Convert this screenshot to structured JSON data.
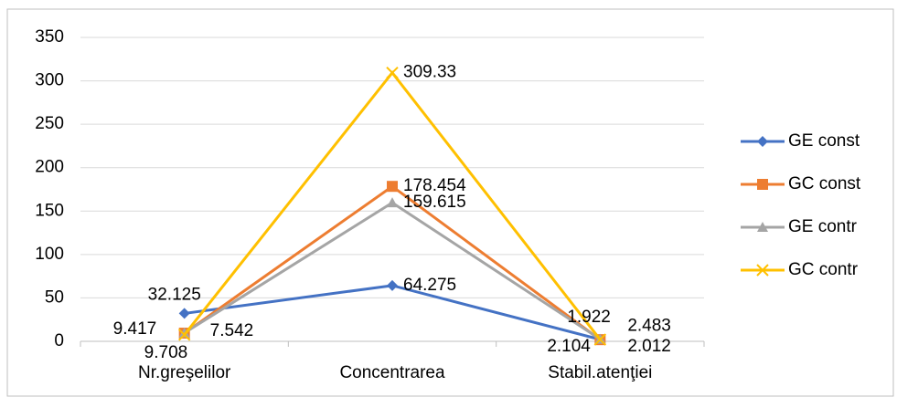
{
  "chart_data": {
    "type": "line",
    "categories": [
      "Nr.greşelilor",
      "Concentrarea",
      "Stabil.atenţiei"
    ],
    "series": [
      {
        "name": "GE const",
        "color": "#4472c4",
        "marker": "diamond",
        "values": [
          32.125,
          64.275,
          2.104
        ]
      },
      {
        "name": "GC const",
        "color": "#ed7d31",
        "marker": "square",
        "values": [
          9.417,
          178.454,
          1.922
        ]
      },
      {
        "name": "GE contr",
        "color": "#a5a5a5",
        "marker": "triangle",
        "values": [
          9.708,
          159.615,
          2.483
        ]
      },
      {
        "name": "GC contr",
        "color": "#ffc000",
        "marker": "x",
        "values": [
          7.542,
          309.33,
          2.012
        ]
      }
    ],
    "ylim": [
      0,
      350
    ],
    "yticks": [
      0,
      50,
      100,
      150,
      200,
      250,
      300,
      350
    ],
    "grid": true,
    "legend": "right"
  }
}
